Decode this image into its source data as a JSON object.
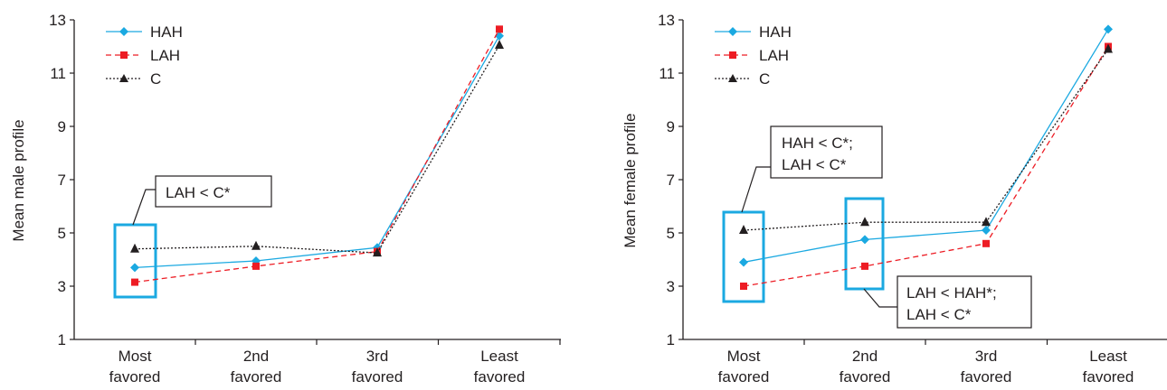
{
  "chart_data": [
    {
      "type": "line",
      "ylabel": "Mean male profile",
      "xlabel": "",
      "ylim": [
        1,
        13
      ],
      "yticks": [
        1,
        3,
        5,
        7,
        9,
        11,
        13
      ],
      "categories": [
        [
          "Most",
          "favored"
        ],
        [
          "2nd",
          "favored"
        ],
        [
          "3rd",
          "favored"
        ],
        [
          "Least",
          "favored"
        ]
      ],
      "legend_position": "top-left",
      "series": [
        {
          "name": "HAH",
          "color": "#1ba9e1",
          "marker": "diamond",
          "line": "solid",
          "values": [
            3.7,
            3.95,
            4.45,
            12.4
          ]
        },
        {
          "name": "LAH",
          "color": "#ed1c24",
          "marker": "square",
          "line": "dashed",
          "values": [
            3.15,
            3.75,
            4.3,
            12.65
          ]
        },
        {
          "name": "C",
          "color": "#231f20",
          "marker": "triangle",
          "line": "dotted",
          "values": [
            4.4,
            4.5,
            4.25,
            12.05
          ]
        }
      ],
      "annotations": [
        {
          "lines": [
            "LAH < C*"
          ],
          "category_index": 0
        }
      ]
    },
    {
      "type": "line",
      "ylabel": "Mean female profile",
      "xlabel": "",
      "ylim": [
        1,
        13
      ],
      "yticks": [
        1,
        3,
        5,
        7,
        9,
        11,
        13
      ],
      "categories": [
        [
          "Most",
          "favored"
        ],
        [
          "2nd",
          "favored"
        ],
        [
          "3rd",
          "favored"
        ],
        [
          "Least",
          "favored"
        ]
      ],
      "legend_position": "top-left",
      "series": [
        {
          "name": "HAH",
          "color": "#1ba9e1",
          "marker": "diamond",
          "line": "solid",
          "values": [
            3.9,
            4.75,
            5.1,
            12.65
          ]
        },
        {
          "name": "LAH",
          "color": "#ed1c24",
          "marker": "square",
          "line": "dashed",
          "values": [
            3.0,
            3.75,
            4.6,
            12.0
          ]
        },
        {
          "name": "C",
          "color": "#231f20",
          "marker": "triangle",
          "line": "dotted",
          "values": [
            5.1,
            5.4,
            5.4,
            11.9
          ]
        }
      ],
      "annotations": [
        {
          "lines": [
            "HAH < C*;",
            "LAH < C*"
          ],
          "category_index": 0
        },
        {
          "lines": [
            "LAH < HAH*;",
            "LAH < C*"
          ],
          "category_index": 1
        }
      ]
    }
  ],
  "colors": {
    "highlight_box": "#1ba9e1",
    "axis": "#231f20"
  }
}
